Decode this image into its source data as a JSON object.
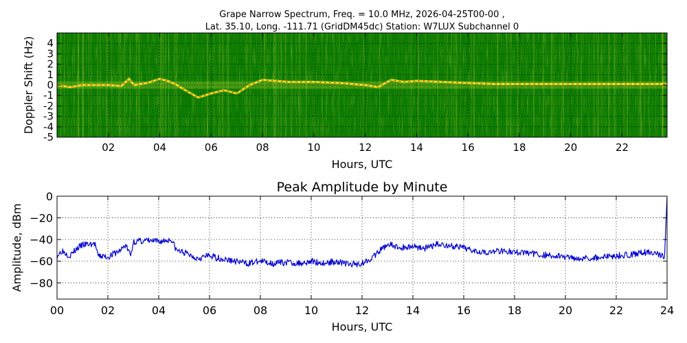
{
  "chart_data": [
    {
      "type": "heatmap",
      "title_line1": "Grape Narrow Spectrum, Freq. = 10.0 MHz, 2026-04-25T00-00 ,",
      "title_line2": "Lat.  35.10, Long. -111.71 (GridDM45dc) Station: W7LUX Subchannel 0",
      "xlabel": "Hours, UTC",
      "ylabel": "Doppler Shift (Hz)",
      "xlim": [
        0,
        23.75
      ],
      "ylim": [
        -5,
        5
      ],
      "xticks": [
        2,
        4,
        6,
        8,
        10,
        12,
        14,
        16,
        18,
        20,
        22
      ],
      "xtick_labels": [
        "02",
        "04",
        "06",
        "08",
        "10",
        "12",
        "14",
        "16",
        "18",
        "20",
        "22"
      ],
      "yticks": [
        4,
        3,
        2,
        1,
        0,
        -1,
        -2,
        -3,
        -4,
        -5
      ],
      "ytick_labels": [
        "4",
        "3",
        "2",
        "1",
        "0",
        "-1",
        "-2",
        "-3",
        "-4",
        "-5"
      ],
      "grid": true,
      "colors": {
        "background": "#0b7a00",
        "signal": "#f2f22a",
        "peak": "#ff2a00"
      },
      "doppler_trace": {
        "x": [
          0,
          0.5,
          1,
          1.5,
          2,
          2.5,
          2.8,
          3,
          3.5,
          4,
          4.3,
          4.6,
          5,
          5.5,
          6,
          6.5,
          7,
          7.5,
          8,
          9,
          10,
          11,
          12,
          12.5,
          13,
          13.5,
          14,
          15,
          16,
          17,
          18,
          19,
          20,
          21,
          22,
          23,
          23.75
        ],
        "y": [
          0,
          -0.2,
          0,
          0,
          0,
          -0.1,
          0.6,
          0,
          0.2,
          0.6,
          0.4,
          0.1,
          -0.5,
          -1.2,
          -0.8,
          -0.5,
          -0.8,
          0,
          0.5,
          0.3,
          0.3,
          0.2,
          0,
          -0.2,
          0.5,
          0.3,
          0.4,
          0.3,
          0.2,
          0.1,
          0.1,
          0.1,
          0.1,
          0.1,
          0.1,
          0.1,
          0.1
        ]
      }
    },
    {
      "type": "line",
      "title": "Peak Amplitude by Minute",
      "xlabel": "Hours, UTC",
      "ylabel": "Amplitude, dBm",
      "xlim": [
        0,
        24
      ],
      "ylim": [
        -95,
        0
      ],
      "xticks": [
        0,
        2,
        4,
        6,
        8,
        10,
        12,
        14,
        16,
        18,
        20,
        22,
        24
      ],
      "xtick_labels": [
        "00",
        "02",
        "04",
        "06",
        "08",
        "10",
        "12",
        "14",
        "16",
        "18",
        "20",
        "22",
        "24"
      ],
      "yticks": [
        0,
        -20,
        -40,
        -60,
        -80
      ],
      "ytick_labels": [
        "0",
        "−20",
        "−40",
        "−60",
        "−80"
      ],
      "grid": true,
      "series": [
        {
          "color": "#0000cc",
          "x": [
            0,
            0.2,
            0.5,
            0.8,
            1.0,
            1.5,
            1.6,
            2.0,
            2.5,
            2.7,
            2.9,
            3.0,
            3.5,
            4.0,
            4.5,
            4.7,
            5.0,
            5.5,
            6.0,
            6.5,
            7.0,
            7.5,
            8.0,
            8.5,
            9.0,
            9.5,
            10.0,
            10.5,
            11.0,
            11.5,
            12.0,
            12.5,
            13.0,
            13.5,
            14.0,
            14.5,
            15.0,
            15.5,
            16.0,
            16.5,
            17.0,
            17.5,
            18.0,
            18.5,
            19.0,
            19.5,
            20.0,
            20.5,
            21.0,
            21.5,
            22.0,
            22.5,
            23.0,
            23.5,
            23.8,
            23.9,
            24.0
          ],
          "y": [
            -55,
            -50,
            -55,
            -48,
            -45,
            -44,
            -55,
            -56,
            -50,
            -45,
            -55,
            -42,
            -41,
            -42,
            -40,
            -50,
            -52,
            -57,
            -55,
            -58,
            -60,
            -62,
            -60,
            -62,
            -61,
            -62,
            -60,
            -62,
            -60,
            -63,
            -62,
            -55,
            -44,
            -48,
            -46,
            -48,
            -44,
            -46,
            -48,
            -50,
            -52,
            -50,
            -52,
            -52,
            -54,
            -55,
            -56,
            -57,
            -57,
            -56,
            -55,
            -54,
            -52,
            -52,
            -55,
            -56,
            0
          ]
        }
      ]
    }
  ]
}
